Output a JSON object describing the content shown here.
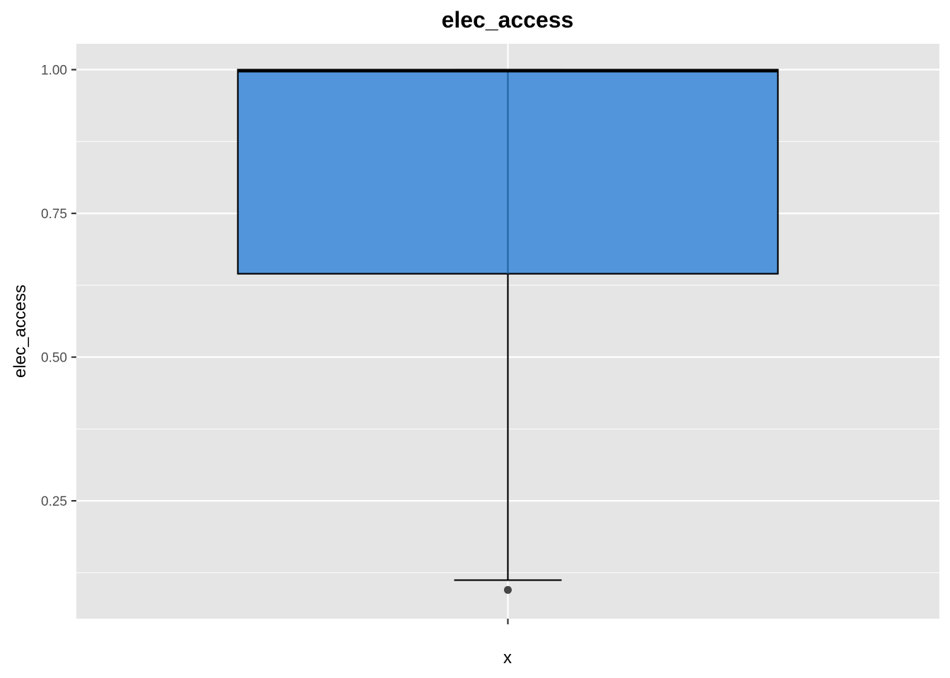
{
  "chart_data": {
    "type": "boxplot",
    "title": "elec_access",
    "xlabel": "x",
    "ylabel": "elec_access",
    "ylim": [
      0.045,
      1.045
    ],
    "yticks": [
      0.25,
      0.5,
      0.75,
      1.0
    ],
    "ytick_labels": [
      "0.25",
      "0.50",
      "0.75",
      "1.00"
    ],
    "xtick_labels": [
      ""
    ],
    "grid": true,
    "box": {
      "lower_whisker": 0.112,
      "q1": 0.645,
      "median": 0.998,
      "q3": 1.0,
      "upper_whisker": 1.0,
      "outliers": [
        0.095
      ]
    },
    "fill_color": "#4a90d9",
    "panel_color": "#e5e5e5",
    "grid_color": "#ffffff"
  }
}
